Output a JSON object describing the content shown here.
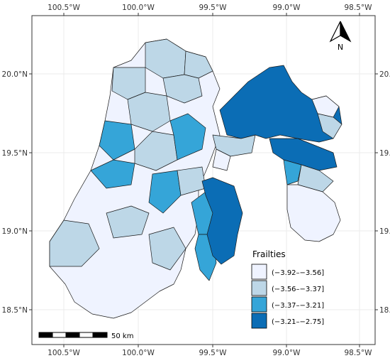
{
  "axes": {
    "x_ticks": [
      "100.5°W",
      "100.0°W",
      "99.5°W",
      "99.0°W",
      "98.5°W"
    ],
    "y_ticks": [
      "20.0°N",
      "19.5°N",
      "19.0°N",
      "18.5°N"
    ]
  },
  "north_arrow": {
    "label": "N"
  },
  "scale_bar": {
    "label": "50 km"
  },
  "legend": {
    "title": "Frailties",
    "items": [
      {
        "label": "(−3.92–−3.56]",
        "color": "#eff3ff"
      },
      {
        "label": "(−3.56–−3.37]",
        "color": "#bdd7e7"
      },
      {
        "label": "(−3.37–−3.21]",
        "color": "#35a5d8"
      },
      {
        "label": "(−3.21–−2.75]",
        "color": "#0b6db5"
      }
    ]
  },
  "colors": {
    "panel_bg": "#ffffff",
    "grid": "#ebebeb",
    "border": "#333333",
    "region_stroke": "#1a1a1a"
  }
}
